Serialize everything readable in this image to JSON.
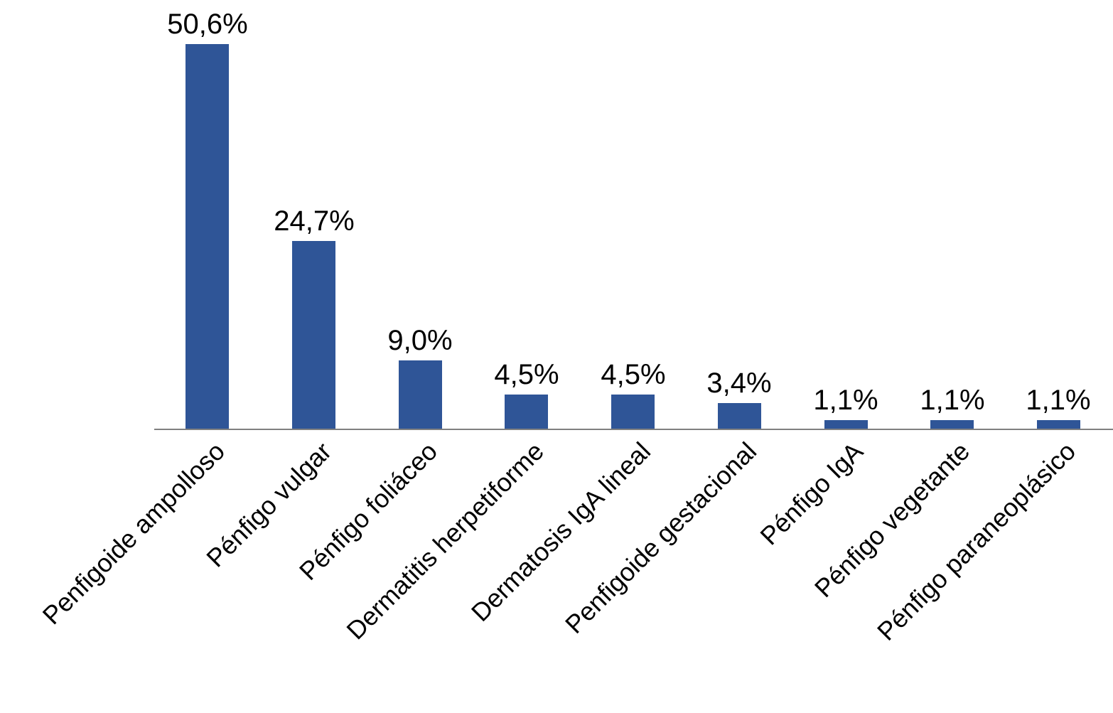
{
  "chart_data": {
    "type": "bar",
    "title": "",
    "xlabel": "",
    "ylabel": "",
    "categories": [
      "Penfigoide ampolloso",
      "Pénfigo vulgar",
      "Pénfigo foliáceo",
      "Dermatitis herpetiforme",
      "Dermatosis IgA lineal",
      "Penfigoide gestacional",
      "Pénfigo IgA",
      "Pénfigo vegetante",
      "Pénfigo paraneoplásico"
    ],
    "values": [
      50.6,
      24.7,
      9.0,
      4.5,
      4.5,
      3.4,
      1.1,
      1.1,
      1.1
    ],
    "value_labels": [
      "50,6%",
      "24,7%",
      "9,0%",
      "4,5%",
      "4,5%",
      "3,4%",
      "1,1%",
      "1,1%",
      "1,1%"
    ],
    "unit": "%",
    "ylim": [
      0,
      55
    ],
    "grid": false,
    "legend": null,
    "x_tick_rotation_deg": 45,
    "colors": {
      "bar": "#2F5597",
      "axis_line": "#808080",
      "text": "#000000",
      "background": "#FFFFFF"
    }
  }
}
